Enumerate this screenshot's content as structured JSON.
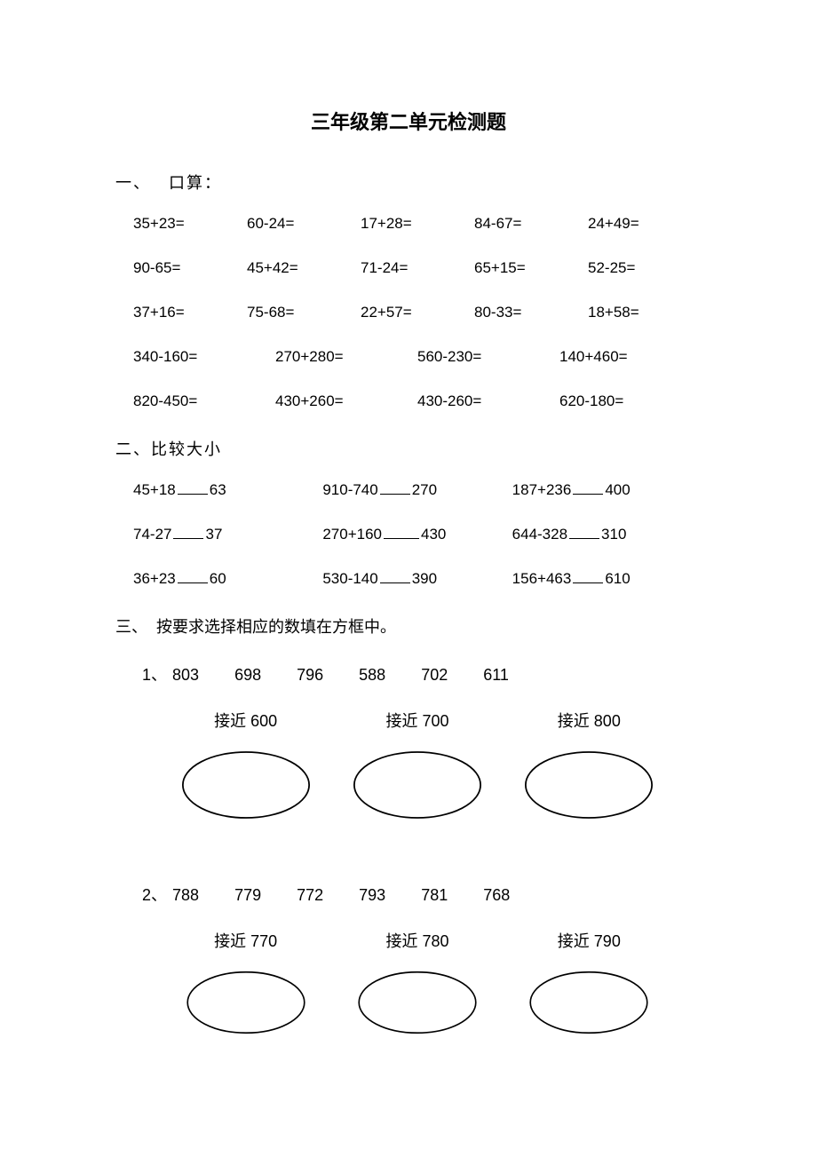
{
  "title": "三年级第二单元检测题",
  "section1": {
    "heading_prefix": "一、",
    "heading_text": "口算：",
    "rows5": [
      [
        "35+23=",
        "60-24=",
        "17+28=",
        "84-67=",
        "24+49="
      ],
      [
        "90-65=",
        "45+42=",
        "71-24=",
        "65+15=",
        "52-25="
      ],
      [
        "37+16=",
        "75-68=",
        "22+57=",
        "80-33=",
        "18+58="
      ]
    ],
    "rows4": [
      [
        "340-160=",
        "270+280=",
        "560-230=",
        "140+460="
      ],
      [
        "820-450=",
        "430+260=",
        "430-260=",
        "620-180="
      ]
    ]
  },
  "section2": {
    "heading": "二、比较大小",
    "rows": [
      [
        {
          "l": "45+18",
          "r": "63"
        },
        {
          "l": "910-740",
          "r": "270"
        },
        {
          "l": "187+236",
          "r": "400"
        }
      ],
      [
        {
          "l": "74-27",
          "r": "37"
        },
        {
          "l": "270+160",
          "r": "430",
          "wide": true
        },
        {
          "l": "644-328",
          "r": "310"
        }
      ],
      [
        {
          "l": "36+23",
          "r": "60"
        },
        {
          "l": "530-140",
          "r": "390"
        },
        {
          "l": "156+463",
          "r": "610"
        }
      ]
    ]
  },
  "section3": {
    "heading_prefix": "三、",
    "heading_text": "按要求选择相应的数填在方框中。",
    "q1": {
      "prefix": "1、",
      "numbers": [
        "803",
        "698",
        "796",
        "588",
        "702",
        "611"
      ],
      "labels": [
        "接近 600",
        "接近 700",
        "接近 800"
      ]
    },
    "q2": {
      "prefix": "2、",
      "numbers": [
        "788",
        "779",
        "772",
        "793",
        "781",
        "768"
      ],
      "labels": [
        "接近 770",
        "接近 780",
        "接近 790"
      ]
    }
  },
  "style": {
    "text_color": "#000000",
    "bg_color": "#ffffff",
    "stroke_color": "#000000",
    "stroke_width": 1.2,
    "title_fontsize": 22,
    "body_fontsize": 17,
    "heading_fontsize": 18
  }
}
